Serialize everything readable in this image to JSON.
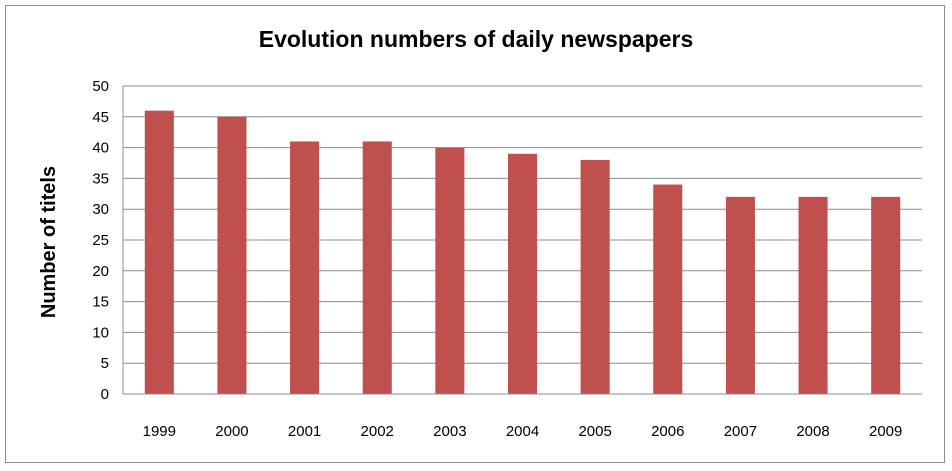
{
  "chart_data": {
    "type": "bar",
    "title": "Evolution numbers of daily newspapers",
    "xlabel": "",
    "ylabel": "Number of titels",
    "categories": [
      "1999",
      "2000",
      "2001",
      "2002",
      "2003",
      "2004",
      "2005",
      "2006",
      "2007",
      "2008",
      "2009"
    ],
    "values": [
      46,
      45,
      41,
      41,
      40,
      39,
      38,
      34,
      32,
      32,
      32
    ],
    "ylim": [
      0,
      50
    ],
    "yticks": [
      "0",
      "5",
      "10",
      "15",
      "20",
      "25",
      "30",
      "35",
      "40",
      "45",
      "50"
    ],
    "grid": true,
    "legend": "none",
    "bar_color": "#c0504d"
  }
}
